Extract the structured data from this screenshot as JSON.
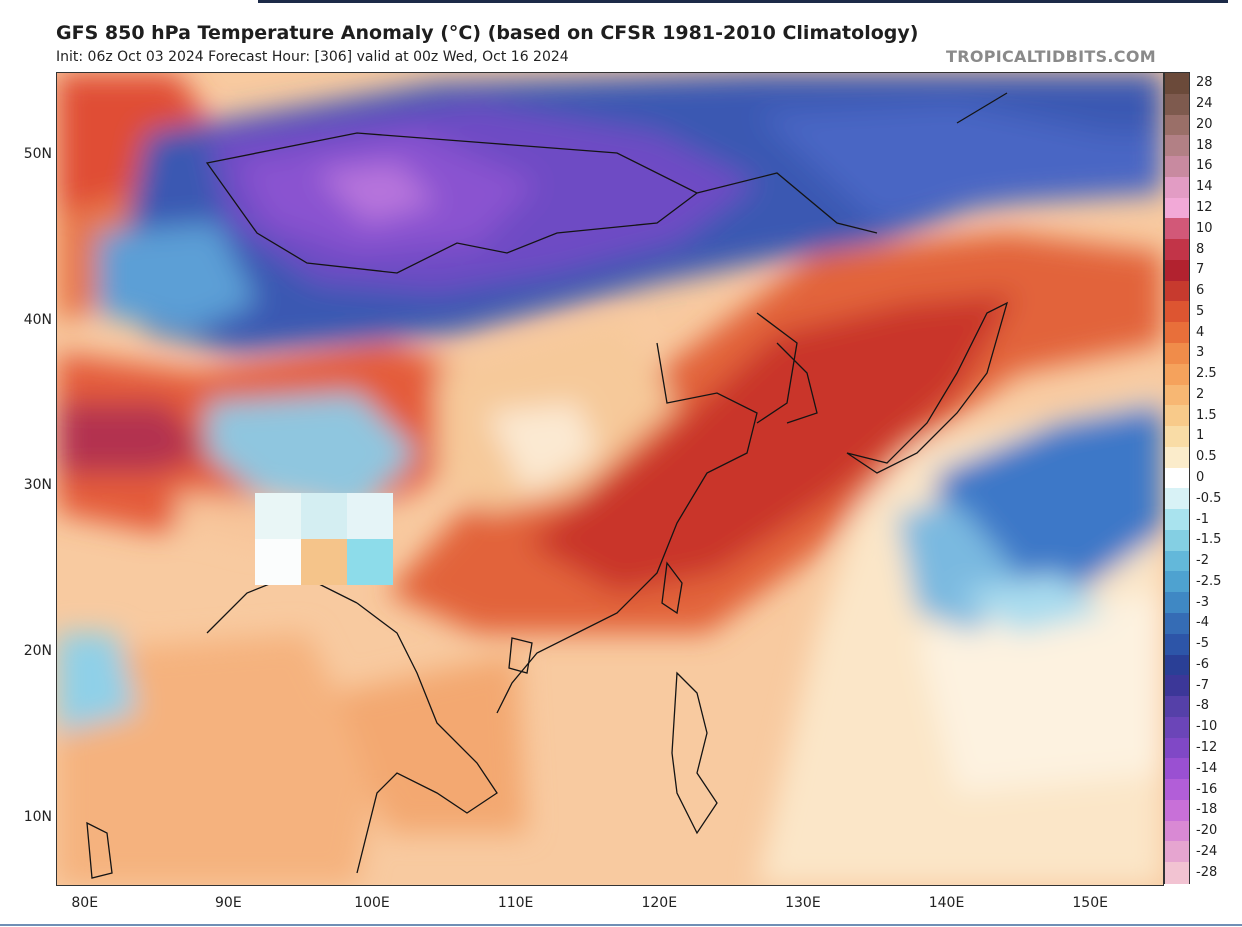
{
  "header": {
    "title": "GFS 850 hPa Temperature Anomaly (°C) (based on CFSR 1981-2010 Climatology)",
    "subtitle": "Init: 06z Oct 03 2024   Forecast Hour: [306]   valid at 00z Wed, Oct 16 2024",
    "brand": "TROPICALTIDBITS.COM"
  },
  "axes": {
    "lat_labels": [
      "50N",
      "40N",
      "30N",
      "20N",
      "10N"
    ],
    "lon_labels": [
      "80E",
      "90E",
      "100E",
      "110E",
      "120E",
      "130E",
      "140E",
      "150E"
    ],
    "lat_range": [
      6,
      55
    ],
    "lon_range": [
      78,
      155
    ]
  },
  "colorbar": {
    "labels": [
      "28",
      "24",
      "20",
      "18",
      "16",
      "14",
      "12",
      "10",
      "8",
      "7",
      "6",
      "5",
      "4",
      "3",
      "2.5",
      "2",
      "1.5",
      "1",
      "0.5",
      "0",
      "-0.5",
      "-1",
      "-1.5",
      "-2",
      "-2.5",
      "-3",
      "-4",
      "-5",
      "-6",
      "-7",
      "-8",
      "-10",
      "-12",
      "-14",
      "-16",
      "-18",
      "-20",
      "-24",
      "-28"
    ],
    "colors": [
      "#6b4a3a",
      "#7e5a4e",
      "#9a6f68",
      "#b28085",
      "#c88aa0",
      "#e29cc4",
      "#f2a9d7",
      "#d25878",
      "#c23448",
      "#b2222f",
      "#c73a2e",
      "#dd5531",
      "#e86f3a",
      "#f08c4a",
      "#f5a25c",
      "#f7b773",
      "#f8ca8a",
      "#f9dca6",
      "#fbeccb",
      "#ffffff",
      "#d8f2f6",
      "#a9e3ee",
      "#84cfe3",
      "#63b8da",
      "#4ea2d0",
      "#3f88c4",
      "#356cb5",
      "#2d55a8",
      "#2a3f96",
      "#3c3798",
      "#5540a8",
      "#6b45b8",
      "#8048c6",
      "#9a50d2",
      "#b25ed8",
      "#c870d8",
      "#d989d4",
      "#e6a5d0",
      "#f2c3d2"
    ]
  }
}
